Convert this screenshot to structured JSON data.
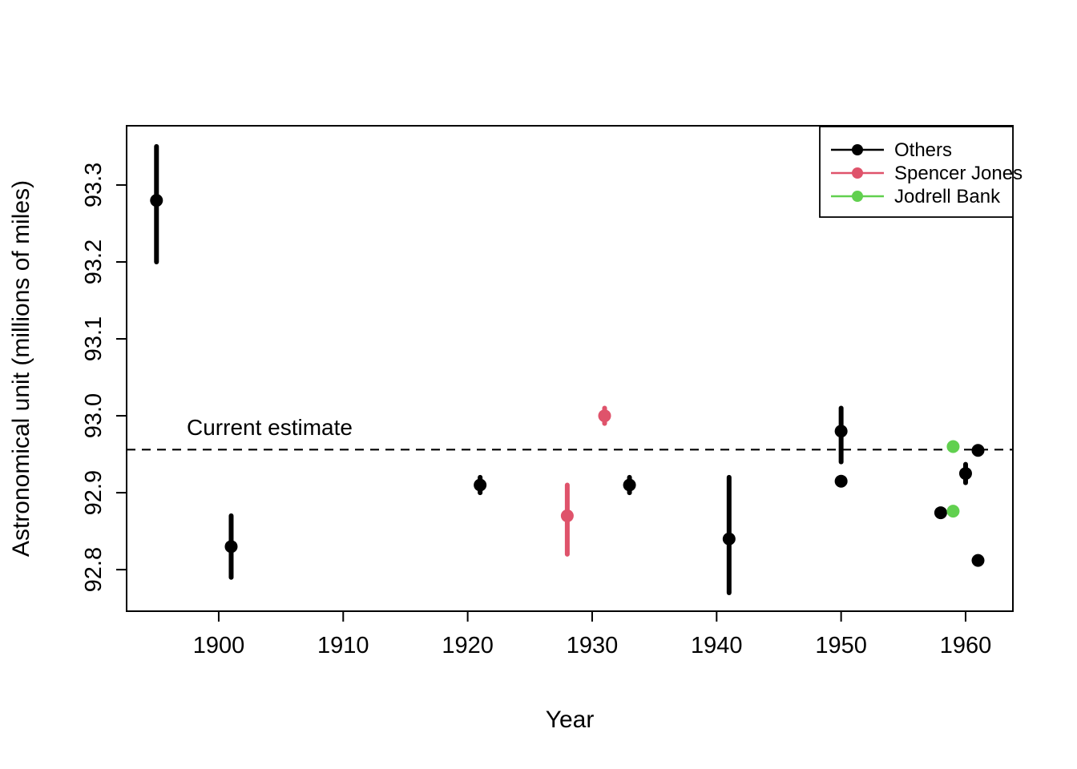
{
  "figure": {
    "background": "#ffffff",
    "axis_color": "#000000"
  },
  "chart_data": {
    "type": "scatter",
    "title": "",
    "xlabel": "Year",
    "ylabel": "Astronomical unit (millions of miles)",
    "xlim": [
      1892.6,
      1963.8
    ],
    "ylim": [
      92.746,
      93.377
    ],
    "x_ticks": [
      "1900",
      "1910",
      "1920",
      "1930",
      "1940",
      "1950",
      "1960"
    ],
    "x_tick_values": [
      1900,
      1910,
      1920,
      1930,
      1940,
      1950,
      1960
    ],
    "y_ticks": [
      "92.8",
      "92.9",
      "93.0",
      "93.1",
      "93.2",
      "93.3"
    ],
    "y_tick_values": [
      92.8,
      92.9,
      93.0,
      93.1,
      93.2,
      93.3
    ],
    "grid": false,
    "reference_line": {
      "label": "Current estimate",
      "value": 92.956,
      "style": "dashed",
      "color": "#000000"
    },
    "legend": {
      "position": "topright",
      "entries": [
        "Others",
        "Spencer Jones",
        "Jodrell Bank"
      ]
    },
    "series": [
      {
        "name": "Others",
        "color": "#000000",
        "points": [
          {
            "year": 1895,
            "value": 93.28,
            "lo": 93.2,
            "hi": 93.35
          },
          {
            "year": 1901,
            "value": 92.83,
            "lo": 92.79,
            "hi": 92.87
          },
          {
            "year": 1921,
            "value": 92.91,
            "lo": 92.9,
            "hi": 92.92
          },
          {
            "year": 1933,
            "value": 92.91,
            "lo": 92.9,
            "hi": 92.92
          },
          {
            "year": 1941,
            "value": 92.84,
            "lo": 92.77,
            "hi": 92.92
          },
          {
            "year": 1950,
            "value": 92.98,
            "lo": 92.94,
            "hi": 93.01
          },
          {
            "year": 1950,
            "value": 92.915,
            "lo": null,
            "hi": null
          },
          {
            "year": 1958,
            "value": 92.874,
            "lo": null,
            "hi": null
          },
          {
            "year": 1960,
            "value": 92.925,
            "lo": 92.913,
            "hi": 92.937
          },
          {
            "year": 1961,
            "value": 92.955,
            "lo": null,
            "hi": null
          },
          {
            "year": 1961,
            "value": 92.812,
            "lo": null,
            "hi": null
          }
        ]
      },
      {
        "name": "Spencer Jones",
        "color": "#DF536B",
        "points": [
          {
            "year": 1928,
            "value": 92.87,
            "lo": 92.82,
            "hi": 92.91
          },
          {
            "year": 1931,
            "value": 93.0,
            "lo": 92.99,
            "hi": 93.01
          }
        ]
      },
      {
        "name": "Jodrell Bank",
        "color": "#61D04F",
        "points": [
          {
            "year": 1959,
            "value": 92.96,
            "lo": null,
            "hi": null
          },
          {
            "year": 1959,
            "value": 92.876,
            "lo": null,
            "hi": null
          }
        ]
      }
    ]
  }
}
